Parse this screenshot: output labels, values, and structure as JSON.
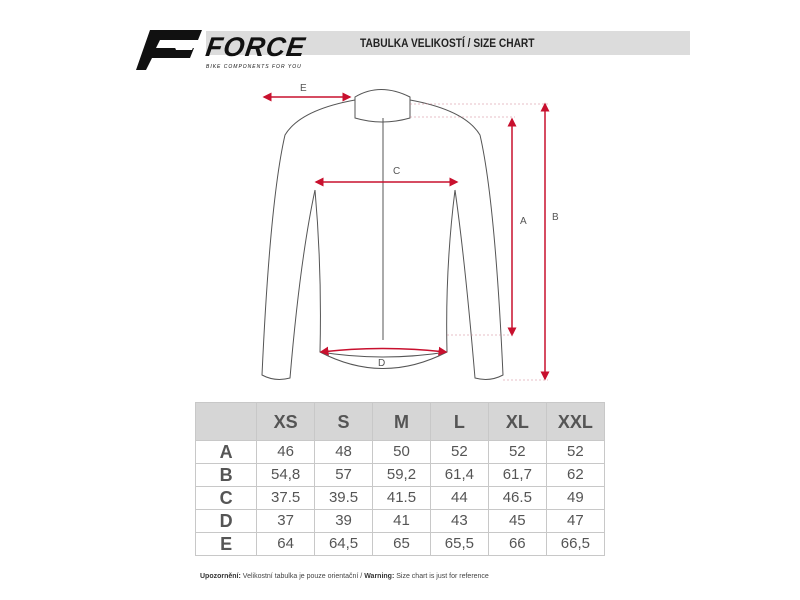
{
  "brand": {
    "name": "FORCE",
    "tagline": "BIKE COMPONENTS FOR YOU"
  },
  "header": {
    "title": "TABULKA VELIKOSTÍ / SIZE CHART"
  },
  "diagram": {
    "labels": [
      "A",
      "B",
      "C",
      "D",
      "E"
    ],
    "accent_color": "#c8102e"
  },
  "table": {
    "columns": [
      "XS",
      "S",
      "M",
      "L",
      "XL",
      "XXL"
    ],
    "rows": [
      {
        "label": "A",
        "values": [
          "46",
          "48",
          "50",
          "52",
          "52",
          "52"
        ]
      },
      {
        "label": "B",
        "values": [
          "54,8",
          "57",
          "59,2",
          "61,4",
          "61,7",
          "62"
        ]
      },
      {
        "label": "C",
        "values": [
          "37.5",
          "39.5",
          "41.5",
          "44",
          "46.5",
          "49"
        ]
      },
      {
        "label": "D",
        "values": [
          "37",
          "39",
          "41",
          "43",
          "45",
          "47"
        ]
      },
      {
        "label": "E",
        "values": [
          "64",
          "64,5",
          "65",
          "65,5",
          "66",
          "66,5"
        ]
      }
    ]
  },
  "note": {
    "cz_label": "Upozornění:",
    "cz_text": "Velikostní tabulka je pouze orientační / ",
    "en_label": "Warning:",
    "en_text": "Size chart is just for reference"
  }
}
